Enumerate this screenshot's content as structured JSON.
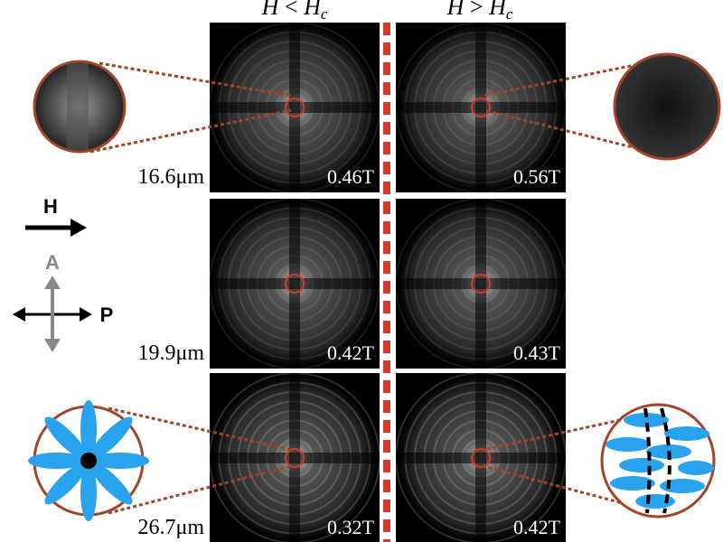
{
  "column_headers": [
    {
      "lhs": "H",
      "op": "<",
      "rhs": "H",
      "sub": "c"
    },
    {
      "lhs": "H",
      "op": ">",
      "rhs": "H",
      "sub": "c"
    }
  ],
  "rows": [
    {
      "scale": "16.6μm",
      "fields": [
        "0.46T",
        "0.56T"
      ]
    },
    {
      "scale": "19.9μm",
      "fields": [
        "0.42T",
        "0.43T"
      ]
    },
    {
      "scale": "26.7μm",
      "fields": [
        "0.32T",
        "0.42T"
      ]
    }
  ],
  "legend": {
    "field": "H",
    "analyzer": "A",
    "polarizer": "P"
  }
}
